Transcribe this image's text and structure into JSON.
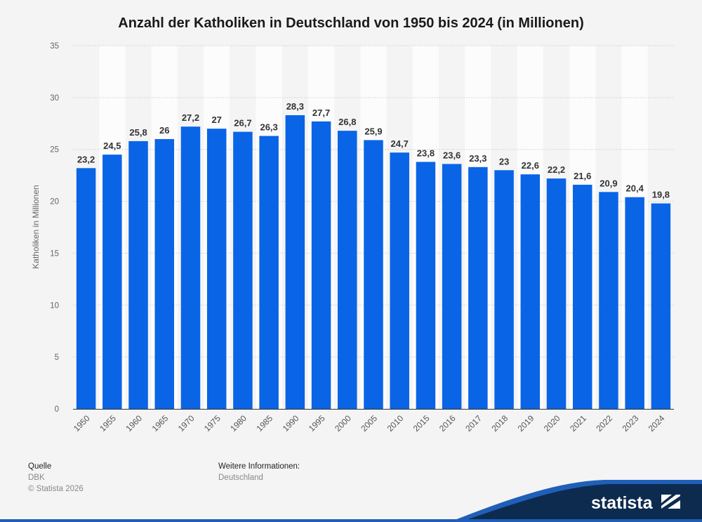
{
  "chart_data": {
    "type": "bar",
    "title": "Anzahl der Katholiken in Deutschland von 1950 bis 2024 (in Millionen)",
    "ylabel": "Katholiken in Millionen",
    "xlabel": "",
    "ylim": [
      0,
      35
    ],
    "yticks": [
      0,
      5,
      10,
      15,
      20,
      25,
      30,
      35
    ],
    "grid": true,
    "categories": [
      "1950",
      "1955",
      "1960",
      "1965",
      "1970",
      "1975",
      "1980",
      "1985",
      "1990",
      "1995",
      "2000",
      "2005",
      "2010",
      "2015",
      "2016",
      "2017",
      "2018",
      "2019",
      "2020",
      "2021",
      "2022",
      "2023",
      "2024"
    ],
    "values": [
      23.2,
      24.5,
      25.8,
      26,
      27.2,
      27,
      26.7,
      26.3,
      28.3,
      27.7,
      26.8,
      25.9,
      24.7,
      23.8,
      23.6,
      23.3,
      23,
      22.6,
      22.2,
      21.6,
      20.9,
      20.4,
      19.8
    ],
    "value_labels": [
      "23,2",
      "24,5",
      "25,8",
      "26",
      "27,2",
      "27",
      "26,7",
      "26,3",
      "28,3",
      "27,7",
      "26,8",
      "25,9",
      "24,7",
      "23,8",
      "23,6",
      "23,3",
      "23",
      "22,6",
      "22,2",
      "21,6",
      "20,9",
      "20,4",
      "19,8"
    ],
    "bar_color": "#0a64e6"
  },
  "footer": {
    "source_heading": "Quelle",
    "source": "DBK",
    "copyright": "© Statista 2026",
    "info_heading": "Weitere Informationen:",
    "info": "Deutschland"
  },
  "brand": {
    "name": "statista",
    "color": "#0d2b4f"
  }
}
